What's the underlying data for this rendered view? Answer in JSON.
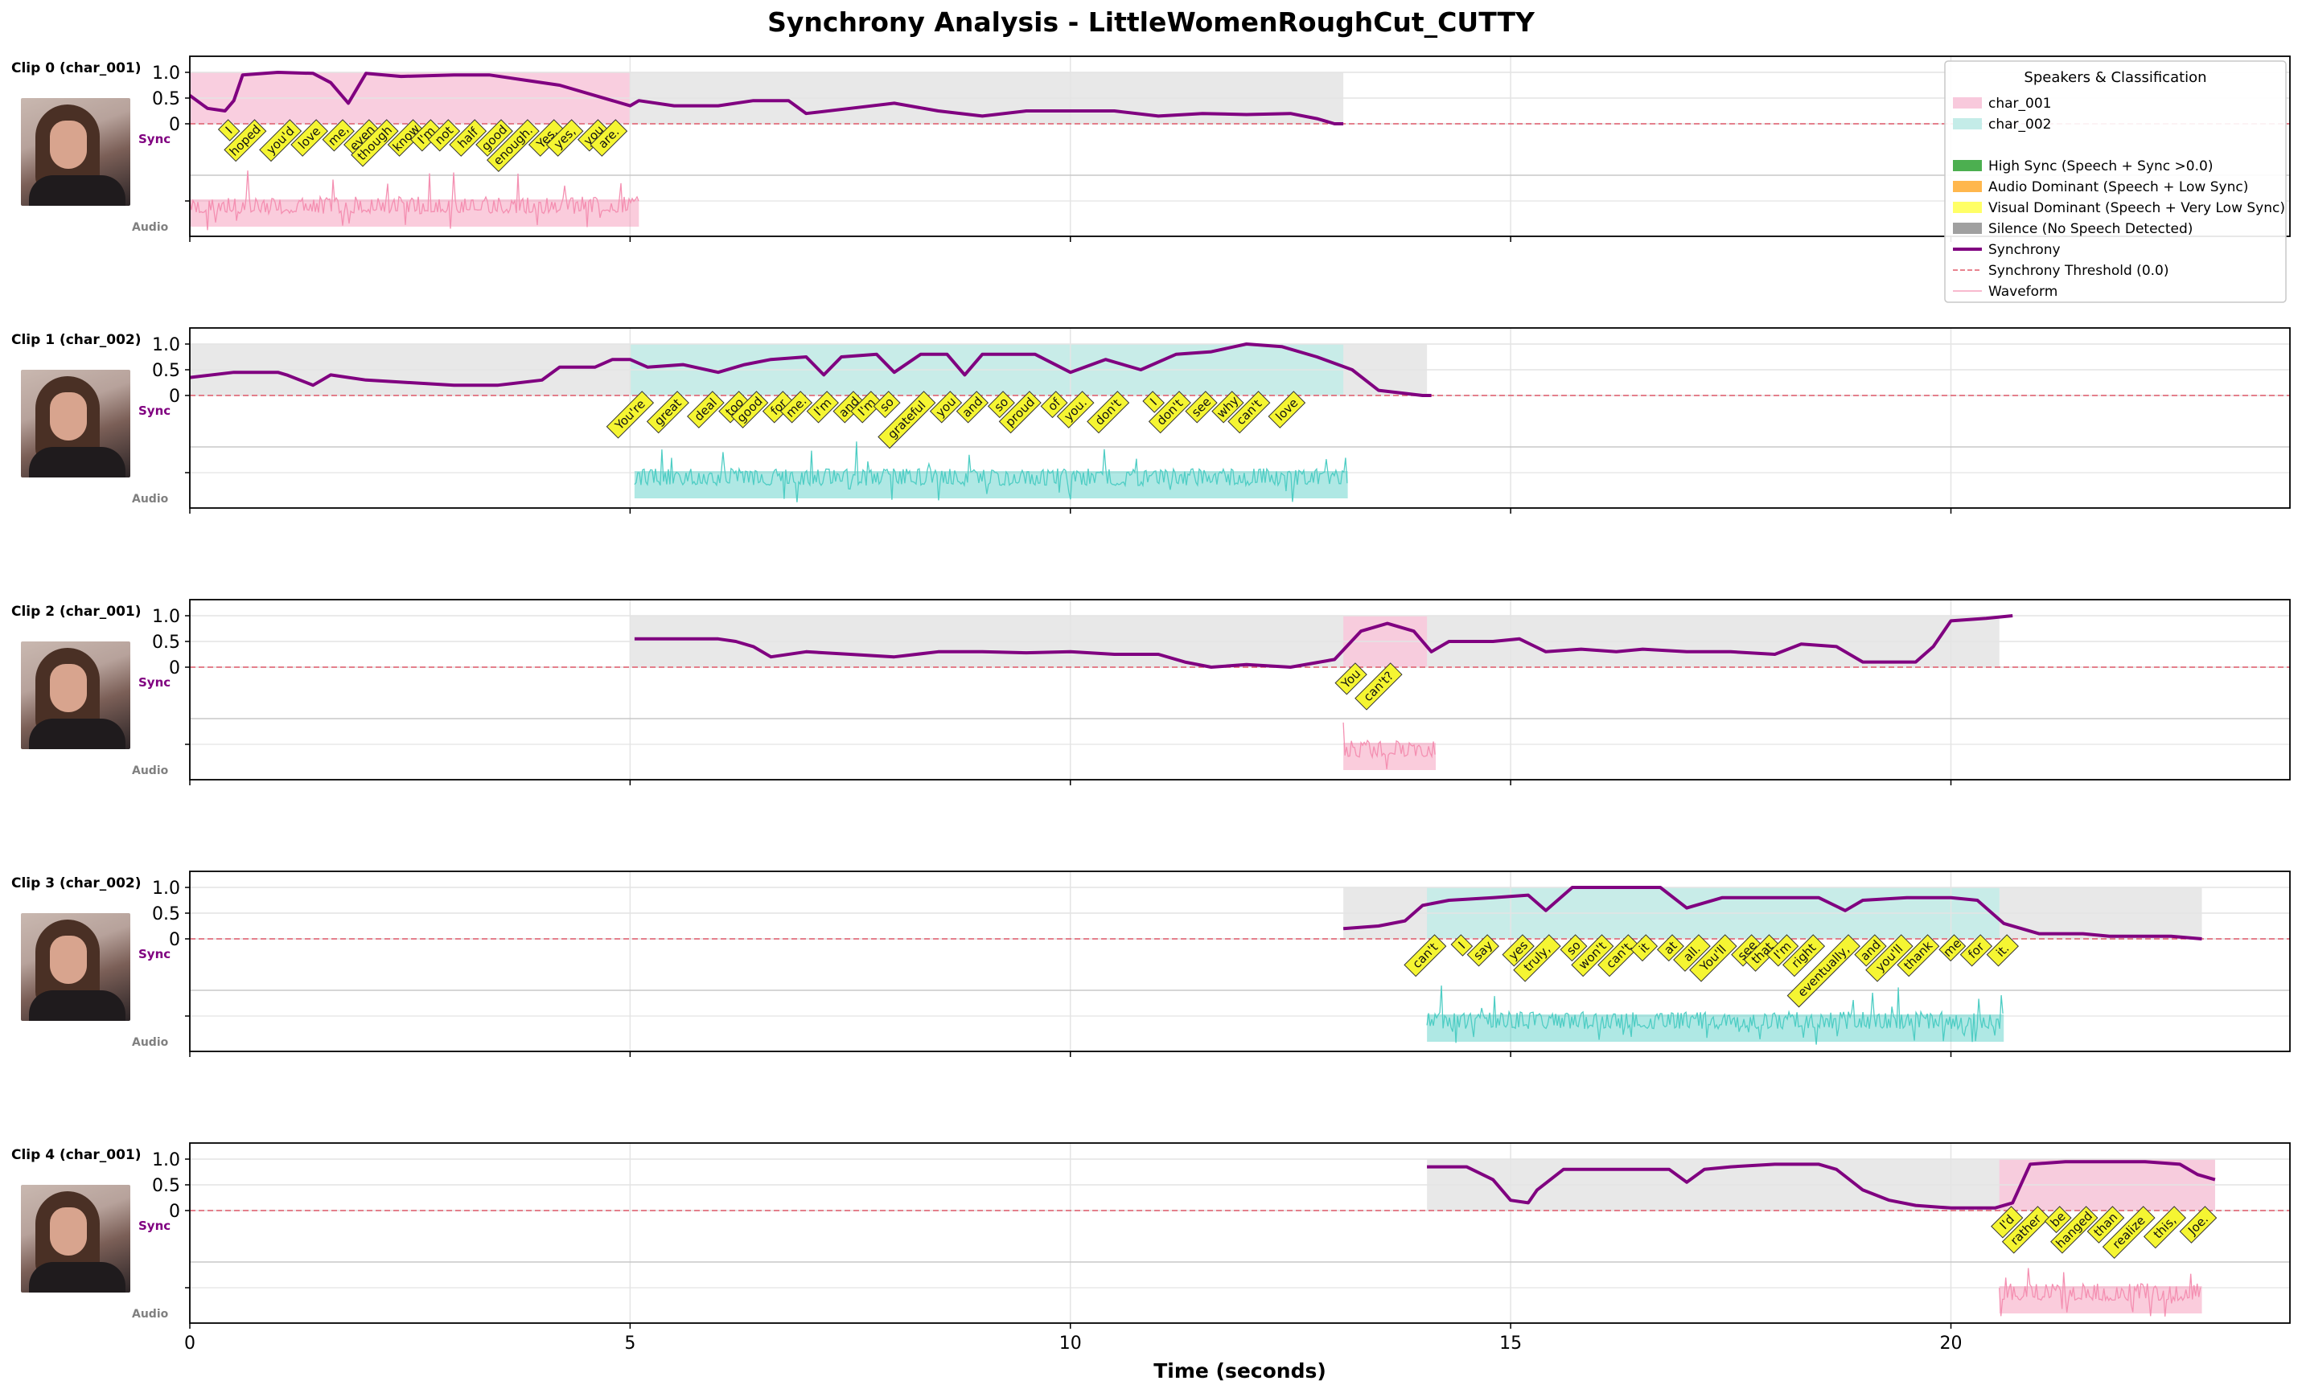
{
  "title": "Synchrony Analysis - LittleWomenRoughCut_CUTTY",
  "xlabel": "Time (seconds)",
  "side_labels": {
    "sync": "Sync",
    "audio": "Audio"
  },
  "colors": {
    "char_001": "#f48fb1",
    "char_002": "#4ecdc4",
    "synchrony": "#800080",
    "threshold": "#e05a6a",
    "silence": "#c8c8c8",
    "word_box": "#f5f532"
  },
  "chart_data": {
    "type": "line",
    "x_range": [
      0,
      23.85
    ],
    "x_ticks": [
      0,
      5,
      10,
      15,
      20
    ],
    "y_ticks": [
      "1.0",
      "0.5",
      "0"
    ],
    "grid": true,
    "legend": {
      "title": "Speakers & Classification",
      "placement": "top-right",
      "entries": [
        {
          "label": "char_001",
          "kind": "patch",
          "color": "#f8c9dc"
        },
        {
          "label": "char_002",
          "kind": "patch",
          "color": "#c4ece8"
        },
        {
          "label": "",
          "kind": "blank"
        },
        {
          "label": "High Sync (Speech + Sync >0.0)",
          "kind": "patch",
          "color": "#4caf50"
        },
        {
          "label": "Audio Dominant (Speech + Low Sync)",
          "kind": "patch",
          "color": "#ffb74d"
        },
        {
          "label": "Visual Dominant (Speech + Very Low Sync)",
          "kind": "patch",
          "color": "#ffff66"
        },
        {
          "label": "Silence (No Speech Detected)",
          "kind": "patch",
          "color": "#a0a0a0"
        },
        {
          "label": "Synchrony",
          "kind": "line",
          "color": "#800080"
        },
        {
          "label": "Synchrony Threshold (0.0)",
          "kind": "dash",
          "color": "#e05a6a"
        },
        {
          "label": "Waveform",
          "kind": "thin",
          "color": "#f48fb1"
        }
      ]
    },
    "clips": [
      {
        "label": "Clip 0 (char_001)",
        "speaker": "char_001",
        "silence": [
          5.0,
          13.1
        ],
        "speech": [
          [
            0,
            5.0
          ]
        ],
        "audio": [
          0,
          5.1
        ],
        "sync": [
          [
            0,
            0.55
          ],
          [
            0.2,
            0.3
          ],
          [
            0.4,
            0.25
          ],
          [
            0.5,
            0.45
          ],
          [
            0.6,
            0.95
          ],
          [
            1.0,
            1.0
          ],
          [
            1.4,
            0.98
          ],
          [
            1.6,
            0.8
          ],
          [
            1.8,
            0.4
          ],
          [
            2.0,
            0.98
          ],
          [
            2.4,
            0.92
          ],
          [
            3.0,
            0.95
          ],
          [
            3.4,
            0.95
          ],
          [
            3.8,
            0.85
          ],
          [
            4.2,
            0.75
          ],
          [
            4.6,
            0.55
          ],
          [
            5.0,
            0.35
          ],
          [
            5.1,
            0.45
          ],
          [
            5.5,
            0.35
          ],
          [
            6.0,
            0.35
          ],
          [
            6.4,
            0.45
          ],
          [
            6.8,
            0.45
          ],
          [
            7.0,
            0.2
          ],
          [
            7.5,
            0.3
          ],
          [
            8.0,
            0.4
          ],
          [
            8.5,
            0.25
          ],
          [
            9.0,
            0.15
          ],
          [
            9.5,
            0.25
          ],
          [
            10.0,
            0.25
          ],
          [
            10.5,
            0.25
          ],
          [
            11.0,
            0.15
          ],
          [
            11.5,
            0.2
          ],
          [
            12.0,
            0.18
          ],
          [
            12.5,
            0.2
          ],
          [
            12.8,
            0.1
          ],
          [
            13.0,
            0.0
          ],
          [
            13.1,
            0.0
          ]
        ],
        "words": [
          [
            0.5,
            "I"
          ],
          [
            0.8,
            "hoped"
          ],
          [
            1.2,
            "you'd"
          ],
          [
            1.5,
            "love"
          ],
          [
            1.8,
            "me,"
          ],
          [
            2.1,
            "even"
          ],
          [
            2.3,
            "though"
          ],
          [
            2.6,
            "know"
          ],
          [
            2.8,
            "I'm"
          ],
          [
            3.0,
            "not"
          ],
          [
            3.3,
            "half"
          ],
          [
            3.6,
            "good"
          ],
          [
            3.9,
            "enough."
          ],
          [
            4.2,
            "Yes,"
          ],
          [
            4.4,
            "yes,"
          ],
          [
            4.7,
            "you"
          ],
          [
            4.9,
            "are."
          ]
        ]
      },
      {
        "label": "Clip 1 (char_002)",
        "speaker": "char_002",
        "silence": [
          0,
          14.05
        ],
        "speech": [
          [
            5.0,
            13.1
          ]
        ],
        "audio": [
          5.05,
          13.15
        ],
        "sync": [
          [
            0,
            0.35
          ],
          [
            0.5,
            0.45
          ],
          [
            1.0,
            0.45
          ],
          [
            1.1,
            0.4
          ],
          [
            1.4,
            0.2
          ],
          [
            1.6,
            0.4
          ],
          [
            2.0,
            0.3
          ],
          [
            2.5,
            0.25
          ],
          [
            3.0,
            0.2
          ],
          [
            3.5,
            0.2
          ],
          [
            4.0,
            0.3
          ],
          [
            4.2,
            0.55
          ],
          [
            4.6,
            0.55
          ],
          [
            4.8,
            0.7
          ],
          [
            5.0,
            0.7
          ],
          [
            5.2,
            0.55
          ],
          [
            5.6,
            0.6
          ],
          [
            6.0,
            0.45
          ],
          [
            6.3,
            0.6
          ],
          [
            6.6,
            0.7
          ],
          [
            7.0,
            0.75
          ],
          [
            7.2,
            0.4
          ],
          [
            7.4,
            0.75
          ],
          [
            7.8,
            0.8
          ],
          [
            8.0,
            0.45
          ],
          [
            8.3,
            0.8
          ],
          [
            8.6,
            0.8
          ],
          [
            8.8,
            0.4
          ],
          [
            9.0,
            0.8
          ],
          [
            9.6,
            0.8
          ],
          [
            10.0,
            0.45
          ],
          [
            10.4,
            0.7
          ],
          [
            10.8,
            0.5
          ],
          [
            11.2,
            0.8
          ],
          [
            11.6,
            0.85
          ],
          [
            12.0,
            1.0
          ],
          [
            12.4,
            0.95
          ],
          [
            12.8,
            0.75
          ],
          [
            13.2,
            0.5
          ],
          [
            13.5,
            0.1
          ],
          [
            14.0,
            0.0
          ],
          [
            14.1,
            0.0
          ]
        ],
        "words": [
          [
            5.2,
            "You're"
          ],
          [
            5.6,
            "great"
          ],
          [
            6.0,
            "deal"
          ],
          [
            6.3,
            "too"
          ],
          [
            6.5,
            "good"
          ],
          [
            6.8,
            "for"
          ],
          [
            7.0,
            "me."
          ],
          [
            7.3,
            "I'm"
          ],
          [
            7.6,
            "and"
          ],
          [
            7.8,
            "I'm"
          ],
          [
            8.0,
            "so"
          ],
          [
            8.4,
            "grateful"
          ],
          [
            8.7,
            "you"
          ],
          [
            9.0,
            "and"
          ],
          [
            9.3,
            "so"
          ],
          [
            9.6,
            "proud"
          ],
          [
            9.9,
            "of"
          ],
          [
            10.2,
            "you."
          ],
          [
            10.6,
            "don't"
          ],
          [
            11.0,
            "I"
          ],
          [
            11.3,
            "don't"
          ],
          [
            11.6,
            "see"
          ],
          [
            11.9,
            "why"
          ],
          [
            12.2,
            "can't"
          ],
          [
            12.6,
            "love"
          ]
        ]
      },
      {
        "label": "Clip 2 (char_001)",
        "speaker": "char_001",
        "silence": [
          5.0,
          20.55
        ],
        "speech": [
          [
            13.1,
            14.05
          ]
        ],
        "audio": [
          13.1,
          14.15
        ],
        "sync": [
          [
            5.05,
            0.55
          ],
          [
            5.5,
            0.55
          ],
          [
            6.0,
            0.55
          ],
          [
            6.2,
            0.5
          ],
          [
            6.4,
            0.4
          ],
          [
            6.6,
            0.2
          ],
          [
            7.0,
            0.3
          ],
          [
            7.5,
            0.25
          ],
          [
            8.0,
            0.2
          ],
          [
            8.5,
            0.3
          ],
          [
            9.0,
            0.3
          ],
          [
            9.5,
            0.28
          ],
          [
            10.0,
            0.3
          ],
          [
            10.5,
            0.25
          ],
          [
            11.0,
            0.25
          ],
          [
            11.3,
            0.1
          ],
          [
            11.6,
            0.0
          ],
          [
            12.0,
            0.05
          ],
          [
            12.5,
            0.0
          ],
          [
            13.0,
            0.15
          ],
          [
            13.3,
            0.7
          ],
          [
            13.6,
            0.85
          ],
          [
            13.9,
            0.7
          ],
          [
            14.1,
            0.3
          ],
          [
            14.3,
            0.5
          ],
          [
            14.8,
            0.5
          ],
          [
            15.1,
            0.55
          ],
          [
            15.4,
            0.3
          ],
          [
            15.8,
            0.35
          ],
          [
            16.2,
            0.3
          ],
          [
            16.5,
            0.35
          ],
          [
            17.0,
            0.3
          ],
          [
            17.5,
            0.3
          ],
          [
            18.0,
            0.25
          ],
          [
            18.3,
            0.45
          ],
          [
            18.7,
            0.4
          ],
          [
            19.0,
            0.1
          ],
          [
            19.6,
            0.1
          ],
          [
            19.8,
            0.4
          ],
          [
            20.0,
            0.9
          ],
          [
            20.4,
            0.95
          ],
          [
            20.7,
            1.0
          ]
        ],
        "words": [
          [
            13.3,
            "You"
          ],
          [
            13.7,
            "can't?"
          ]
        ]
      },
      {
        "label": "Clip 3 (char_002)",
        "speaker": "char_002",
        "silence": [
          13.1,
          22.85
        ],
        "speech": [
          [
            14.05,
            20.55
          ]
        ],
        "audio": [
          14.05,
          20.6
        ],
        "sync": [
          [
            13.1,
            0.2
          ],
          [
            13.5,
            0.25
          ],
          [
            13.8,
            0.35
          ],
          [
            14.0,
            0.65
          ],
          [
            14.3,
            0.75
          ],
          [
            14.8,
            0.8
          ],
          [
            15.2,
            0.85
          ],
          [
            15.4,
            0.55
          ],
          [
            15.7,
            1.0
          ],
          [
            16.2,
            1.0
          ],
          [
            16.7,
            1.0
          ],
          [
            17.0,
            0.6
          ],
          [
            17.4,
            0.8
          ],
          [
            18.0,
            0.8
          ],
          [
            18.5,
            0.8
          ],
          [
            18.8,
            0.55
          ],
          [
            19.0,
            0.75
          ],
          [
            19.5,
            0.8
          ],
          [
            20.0,
            0.8
          ],
          [
            20.3,
            0.75
          ],
          [
            20.6,
            0.3
          ],
          [
            21.0,
            0.1
          ],
          [
            21.5,
            0.1
          ],
          [
            21.8,
            0.05
          ],
          [
            22.2,
            0.05
          ],
          [
            22.5,
            0.05
          ],
          [
            22.85,
            0.0
          ]
        ],
        "words": [
          [
            14.2,
            "can't"
          ],
          [
            14.5,
            "I"
          ],
          [
            14.8,
            "say"
          ],
          [
            15.2,
            "yes"
          ],
          [
            15.5,
            "truly,"
          ],
          [
            15.8,
            "so"
          ],
          [
            16.1,
            "won't"
          ],
          [
            16.4,
            "can't"
          ],
          [
            16.6,
            "it"
          ],
          [
            16.9,
            "at"
          ],
          [
            17.2,
            "all."
          ],
          [
            17.5,
            "You'll"
          ],
          [
            17.8,
            "see"
          ],
          [
            18.0,
            "that"
          ],
          [
            18.2,
            "I'm"
          ],
          [
            18.5,
            "right"
          ],
          [
            18.9,
            "eventually,"
          ],
          [
            19.2,
            "and"
          ],
          [
            19.5,
            "you'll"
          ],
          [
            19.8,
            "thank"
          ],
          [
            20.1,
            "me"
          ],
          [
            20.4,
            "for"
          ],
          [
            20.7,
            "it."
          ]
        ]
      },
      {
        "label": "Clip 4 (char_001)",
        "speaker": "char_001",
        "silence": [
          14.05,
          23.0
        ],
        "speech": [
          [
            20.55,
            23.0
          ]
        ],
        "audio": [
          20.55,
          22.85
        ],
        "sync": [
          [
            14.05,
            0.85
          ],
          [
            14.5,
            0.85
          ],
          [
            14.8,
            0.6
          ],
          [
            15.0,
            0.2
          ],
          [
            15.2,
            0.15
          ],
          [
            15.3,
            0.4
          ],
          [
            15.6,
            0.8
          ],
          [
            16.0,
            0.8
          ],
          [
            16.5,
            0.8
          ],
          [
            16.8,
            0.8
          ],
          [
            17.0,
            0.55
          ],
          [
            17.2,
            0.8
          ],
          [
            17.5,
            0.85
          ],
          [
            18.0,
            0.9
          ],
          [
            18.5,
            0.9
          ],
          [
            18.7,
            0.8
          ],
          [
            19.0,
            0.4
          ],
          [
            19.3,
            0.2
          ],
          [
            19.6,
            0.1
          ],
          [
            20.0,
            0.05
          ],
          [
            20.5,
            0.05
          ],
          [
            20.7,
            0.15
          ],
          [
            20.9,
            0.9
          ],
          [
            21.3,
            0.95
          ],
          [
            21.8,
            0.95
          ],
          [
            22.2,
            0.95
          ],
          [
            22.6,
            0.9
          ],
          [
            22.8,
            0.7
          ],
          [
            23.0,
            0.6
          ]
        ],
        "words": [
          [
            20.75,
            "I'd"
          ],
          [
            21.05,
            "rather"
          ],
          [
            21.3,
            "be"
          ],
          [
            21.6,
            "hanged"
          ],
          [
            21.9,
            "than"
          ],
          [
            22.25,
            "realize"
          ],
          [
            22.6,
            "this,"
          ],
          [
            22.95,
            "Joe."
          ]
        ]
      }
    ]
  }
}
